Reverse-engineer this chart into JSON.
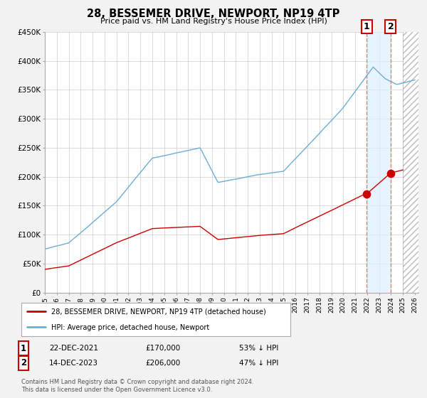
{
  "title": "28, BESSEMER DRIVE, NEWPORT, NP19 4TP",
  "subtitle": "Price paid vs. HM Land Registry's House Price Index (HPI)",
  "ylim": [
    0,
    450000
  ],
  "hpi_color": "#6baed6",
  "price_color": "#cc0000",
  "sale1_date": "22-DEC-2021",
  "sale1_price": 170000,
  "sale1_label": "53% ↓ HPI",
  "sale1_x": 2021.97,
  "sale2_date": "14-DEC-2023",
  "sale2_price": 206000,
  "sale2_label": "47% ↓ HPI",
  "sale2_x": 2023.97,
  "legend_label1": "28, BESSEMER DRIVE, NEWPORT, NP19 4TP (detached house)",
  "legend_label2": "HPI: Average price, detached house, Newport",
  "footer": "Contains HM Land Registry data © Crown copyright and database right 2024.\nThis data is licensed under the Open Government Licence v3.0.",
  "bg_color": "#f2f2f2",
  "plot_bg": "#ffffff",
  "grid_color": "#cccccc",
  "shade_color": "#ddeeff",
  "hatch_color": "#cccccc",
  "xlim_start": 1995.0,
  "xlim_end": 2026.3,
  "hatch_start": 2025.0
}
